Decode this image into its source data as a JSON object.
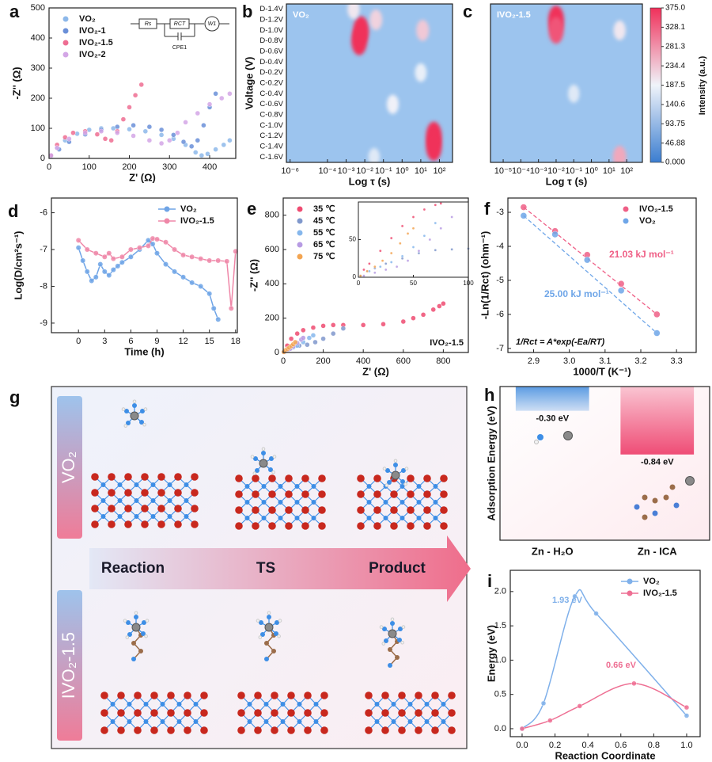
{
  "chart_data": [
    {
      "type": "scatter",
      "label": "a",
      "xlabel": "Z' (Ω)",
      "ylabel": "-Z'' (Ω)",
      "xlim": [
        0,
        465
      ],
      "xticks": [
        0,
        100,
        200,
        300,
        400
      ],
      "ylim": [
        0,
        500
      ],
      "yticks": [
        0,
        100,
        200,
        300,
        400,
        500
      ],
      "legend": "upper left",
      "circuit_labels": [
        "Rs",
        "RCT",
        "W1",
        "CPE1"
      ],
      "series": [
        {
          "name": "VO₂",
          "color": "#8db8ea",
          "x": [
            5,
            20,
            40,
            70,
            100,
            130,
            160,
            200,
            240,
            280,
            310,
            340,
            365,
            380,
            395,
            415,
            435,
            450
          ],
          "values": [
            10,
            35,
            60,
            82,
            95,
            100,
            100,
            97,
            90,
            78,
            65,
            45,
            20,
            10,
            15,
            30,
            45,
            60
          ]
        },
        {
          "name": "IVO₂-1",
          "color": "#6a8fd8",
          "x": [
            5,
            25,
            50,
            90,
            130,
            170,
            210,
            250,
            280,
            310,
            335,
            355,
            370,
            385,
            400,
            415
          ],
          "values": [
            8,
            30,
            55,
            80,
            95,
            105,
            110,
            105,
            95,
            78,
            55,
            40,
            60,
            110,
            170,
            215
          ]
        },
        {
          "name": "IVO₂-1.5",
          "color": "#ee6d92",
          "x": [
            5,
            20,
            40,
            60,
            90,
            120,
            140,
            155,
            170,
            185,
            200,
            215,
            230
          ],
          "values": [
            10,
            45,
            70,
            85,
            90,
            80,
            65,
            60,
            90,
            130,
            170,
            210,
            245
          ]
        },
        {
          "name": "IVO₂-2",
          "color": "#d3a6e6",
          "x": [
            5,
            20,
            50,
            90,
            130,
            170,
            210,
            250,
            280,
            300,
            320,
            340,
            370,
            400,
            430,
            450
          ],
          "values": [
            10,
            35,
            65,
            85,
            90,
            85,
            75,
            60,
            50,
            60,
            85,
            120,
            150,
            180,
            200,
            215
          ]
        }
      ]
    },
    {
      "type": "heatmap",
      "label": "b",
      "xlabel": "Log τ (s)",
      "ylabel": "Voltage (V)",
      "annotation": "VO₂",
      "xlim": [
        -6.2,
        2.7
      ],
      "xticks": [
        {
          "value": -6,
          "label": "10⁻⁶"
        },
        {
          "value": -4,
          "label": "10⁻⁴"
        },
        {
          "value": -3,
          "label": "10⁻³"
        },
        {
          "value": -2,
          "label": "10⁻²"
        },
        {
          "value": -1,
          "label": "10⁻¹"
        },
        {
          "value": 0,
          "label": "10⁰"
        },
        {
          "value": 1,
          "label": "10¹"
        },
        {
          "value": 2,
          "label": "10²"
        }
      ],
      "categories": [
        "D-1.4V",
        "D-1.2V",
        "D-1.0V",
        "D-0.8V",
        "D-0.6V",
        "D-0.4V",
        "D-0.2V",
        "C-0.2V",
        "C-0.4V",
        "C-0.6V",
        "C-0.8V",
        "C-1.0V",
        "C-1.2V",
        "C-1.4V",
        "C-1.6V"
      ],
      "clim": [
        0,
        375
      ],
      "spots": {
        "x": [
          -2.3,
          -2.2,
          -1.4,
          1.1,
          -2.6,
          1.7,
          1.7,
          -0.5,
          1.0,
          -1.5
        ],
        "y": [
          3,
          2,
          1,
          2,
          0,
          12,
          13,
          9,
          6,
          14
        ],
        "values": [
          375,
          375,
          220,
          230,
          200,
          375,
          375,
          190,
          180,
          170
        ]
      }
    },
    {
      "type": "heatmap",
      "label": "c",
      "xlabel": "Log τ (s)",
      "annotation": "IVO₂-1.5",
      "xlim": [
        -5.72,
        2.89
      ],
      "xticks": [
        {
          "value": -5,
          "label": "10⁻⁵"
        },
        {
          "value": -4,
          "label": "10⁻⁴"
        },
        {
          "value": -3,
          "label": "10⁻³"
        },
        {
          "value": -2,
          "label": "10⁻²"
        },
        {
          "value": -1,
          "label": "10⁻¹"
        },
        {
          "value": 0,
          "label": "10⁰"
        },
        {
          "value": 1,
          "label": "10¹"
        },
        {
          "value": 2,
          "label": "10²"
        }
      ],
      "categories": [
        null,
        null,
        null,
        null,
        null,
        null,
        null,
        null,
        null,
        null,
        null,
        null,
        null,
        null,
        null
      ],
      "clim": [
        0,
        375
      ],
      "colorbar_title": "Intensity (a.u.)",
      "colorbar_ticks": [
        {
          "value": 375,
          "label": "375.0"
        },
        328.1,
        281.3,
        234.4,
        187.5,
        140.6,
        93.75,
        46.88,
        {
          "value": 0,
          "label": "0.000"
        }
      ],
      "spots": {
        "x": [
          -2.0,
          -2.0,
          1.6,
          1.6,
          -1.0
        ],
        "y": [
          1,
          2,
          14,
          2,
          8
        ],
        "values": [
          375,
          340,
          260,
          200,
          170
        ]
      }
    },
    {
      "type": "line",
      "label": "d",
      "xlabel": "Time (h)",
      "ylabel": "Log(D/cm²s⁻¹)",
      "xlim": [
        -3.1,
        18.2
      ],
      "xticks": [
        0,
        3,
        6,
        9,
        12,
        15,
        18
      ],
      "ylim": [
        -9.26,
        -5.6
      ],
      "yticks": [
        -9,
        -8,
        -7,
        -6
      ],
      "legend": "upper right",
      "series": [
        {
          "name": "VO₂",
          "color": "#6fa4e6",
          "x": [
            0,
            0.5,
            1,
            1.5,
            2,
            2.5,
            3,
            3.5,
            4,
            4.5,
            5,
            6,
            7,
            8,
            8.5,
            9,
            10,
            11,
            12,
            13,
            14,
            15,
            15.5,
            16
          ],
          "values": [
            -6.95,
            -7.3,
            -7.6,
            -7.85,
            -7.75,
            -7.4,
            -7.6,
            -7.7,
            -7.55,
            -7.45,
            -7.35,
            -7.2,
            -7.0,
            -6.75,
            -6.85,
            -7.1,
            -7.4,
            -7.6,
            -7.75,
            -7.9,
            -8.0,
            -8.2,
            -8.6,
            -8.9
          ]
        },
        {
          "name": "IVO₂-1.5",
          "color": "#ef87a8",
          "x": [
            0,
            1,
            2,
            3,
            3.5,
            4,
            5,
            6,
            7,
            8,
            8.5,
            9,
            10,
            11,
            12,
            13,
            14,
            15,
            16,
            17,
            17.5,
            18
          ],
          "values": [
            -6.75,
            -7.0,
            -7.1,
            -7.2,
            -7.1,
            -7.25,
            -7.2,
            -7.0,
            -6.95,
            -6.9,
            -6.7,
            -6.72,
            -6.8,
            -7.0,
            -7.15,
            -7.2,
            -7.25,
            -7.3,
            -7.3,
            -7.32,
            -8.6,
            -7.05
          ]
        }
      ]
    },
    {
      "type": "scatter",
      "label": "e",
      "xlabel": "Z' (Ω)",
      "ylabel": "-Z'' (Ω)",
      "annotation": "IVO₂-1.5",
      "xlim": [
        0,
        925
      ],
      "xticks": [
        0,
        200,
        400,
        600,
        800
      ],
      "ylim": [
        0,
        900
      ],
      "yticks": [
        0,
        200,
        400,
        600,
        800
      ],
      "legend": "upper left",
      "series": [
        {
          "name": "35 ℃",
          "color": "#ef4b71",
          "x": [
            5,
            20,
            40,
            70,
            100,
            150,
            200,
            250,
            300,
            400,
            500,
            600,
            650,
            700,
            750,
            780,
            800
          ],
          "values": [
            5,
            40,
            80,
            110,
            130,
            145,
            155,
            160,
            160,
            160,
            165,
            180,
            200,
            220,
            250,
            270,
            285
          ]
        },
        {
          "name": "45 ℃",
          "color": "#8098cc",
          "x": [
            5,
            20,
            40,
            60,
            80,
            120,
            160,
            200,
            250,
            300
          ],
          "values": [
            3,
            20,
            35,
            40,
            40,
            45,
            60,
            80,
            110,
            140
          ]
        },
        {
          "name": "55 ℃",
          "color": "#86b7ec",
          "x": [
            5,
            20,
            35,
            50,
            70,
            100,
            130,
            150
          ],
          "values": [
            3,
            15,
            25,
            30,
            40,
            60,
            85,
            100
          ]
        },
        {
          "name": "65 ℃",
          "color": "#b79be3",
          "x": [
            5,
            15,
            25,
            35,
            50,
            70,
            90,
            100
          ],
          "values": [
            3,
            12,
            18,
            22,
            35,
            55,
            75,
            85
          ]
        },
        {
          "name": "75 ℃",
          "color": "#f3a552",
          "x": [
            3,
            10,
            20,
            30,
            40,
            50,
            60
          ],
          "values": [
            3,
            12,
            20,
            28,
            38,
            48,
            60
          ]
        }
      ],
      "inset": {
        "xlim": [
          0,
          100
        ],
        "xticks": [
          0,
          50,
          100
        ],
        "ylim": [
          0,
          100
        ],
        "yticks": [
          0,
          50
        ],
        "series": [
          {
            "color": "#ef4b71",
            "x": [
              2,
              5,
              10,
              20,
              30,
              40,
              50,
              60,
              70,
              75
            ],
            "values": [
              2,
              10,
              18,
              35,
              52,
              68,
              80,
              90,
              96,
              98
            ]
          },
          {
            "color": "#8098cc",
            "x": [
              2,
              8,
              15,
              25,
              40,
              55,
              70,
              85,
              100
            ],
            "values": [
              2,
              8,
              12,
              18,
              25,
              32,
              36,
              37,
              38
            ]
          },
          {
            "color": "#86b7ec",
            "x": [
              2,
              10,
              20,
              30,
              40,
              50,
              60,
              70
            ],
            "values": [
              2,
              8,
              14,
              20,
              28,
              40,
              55,
              72
            ]
          },
          {
            "color": "#b79be3",
            "x": [
              5,
              15,
              25,
              35,
              45,
              55,
              65,
              75,
              85
            ],
            "values": [
              2,
              6,
              10,
              14,
              22,
              35,
              50,
              65,
              80
            ]
          },
          {
            "color": "#f3a552",
            "x": [
              2,
              8,
              15,
              22,
              30,
              38,
              45,
              50
            ],
            "values": [
              2,
              8,
              14,
              22,
              32,
              45,
              58,
              65
            ]
          }
        ]
      }
    },
    {
      "type": "scatter",
      "label": "f",
      "xlabel": "1000/T (K⁻¹)",
      "ylabel": "-Ln(1/Rct) (ohm⁻¹)",
      "xlim": [
        2.828,
        3.355
      ],
      "xticks": [
        2.9,
        {
          "value": 3,
          "label": "3.0"
        },
        3.1,
        3.2,
        3.3
      ],
      "ylim": [
        -7.12,
        -2.58
      ],
      "yticks": [
        -7,
        -6,
        -5,
        -4,
        -3
      ],
      "legend": "upper right",
      "fit_lines": true,
      "annotations": [
        "21.03 kJ mol⁻¹",
        "25.00 kJ mol⁻¹",
        "1/Rct = A*exp(-Ea/RT)"
      ],
      "series": [
        {
          "name": "IVO₂-1.5",
          "color": "#ef5f86",
          "x": [
            2.872,
            2.96,
            3.05,
            3.145,
            3.245
          ],
          "values": [
            -2.85,
            -3.55,
            -4.25,
            -5.1,
            -6.0
          ]
        },
        {
          "name": "VO₂",
          "color": "#6fa6e8",
          "x": [
            2.872,
            2.96,
            3.05,
            3.145,
            3.245
          ],
          "values": [
            -3.1,
            -3.65,
            -4.4,
            -5.3,
            -6.55
          ]
        }
      ]
    },
    {
      "type": "bar",
      "label": "h",
      "ylabel": "Adsorption Energy (eV)",
      "categories": [
        "Zn - H₂O",
        "Zn - ICA"
      ],
      "values": [
        -0.3,
        -0.84
      ],
      "value_labels": [
        "-0.30 eV",
        "-0.84 eV"
      ],
      "colors": [
        "#5b9be2",
        "#ef4d76"
      ],
      "ylim": [
        -1.9,
        0
      ]
    },
    {
      "type": "line",
      "label": "i",
      "xlabel": "Reaction Coordinate",
      "ylabel": "Energy (eV)",
      "xlim": [
        -0.072,
        1.082
      ],
      "xticks": [
        {
          "value": 0,
          "label": "0.0"
        },
        0.2,
        0.4,
        0.6,
        0.8,
        {
          "value": 1,
          "label": "1.0"
        }
      ],
      "ylim": [
        -0.116,
        2.31
      ],
      "yticks": [
        {
          "value": 0,
          "label": "0.0"
        },
        0.5,
        {
          "value": 1,
          "label": "1.0"
        },
        1.5,
        {
          "value": 2,
          "label": "2.0"
        }
      ],
      "legend": "upper right",
      "smooth": true,
      "annotations": [
        "1.93 eV",
        "0.66 eV"
      ],
      "series": [
        {
          "name": "VO₂",
          "color": "#7fb0ea",
          "x": [
            0,
            0.13,
            0.32,
            0.45,
            1.0
          ],
          "values": [
            0,
            0.37,
            1.93,
            1.68,
            0.19
          ]
        },
        {
          "name": "IVO₂-1.5",
          "color": "#ee6f93",
          "x": [
            0,
            0.17,
            0.35,
            0.68,
            1.0
          ],
          "values": [
            0,
            0.12,
            0.33,
            0.66,
            0.31
          ]
        }
      ]
    }
  ],
  "schematic": {
    "label": "g",
    "rows": [
      "VO₂",
      "IVO₂-1.5"
    ],
    "stages": [
      "Reaction",
      "TS",
      "Product"
    ]
  }
}
